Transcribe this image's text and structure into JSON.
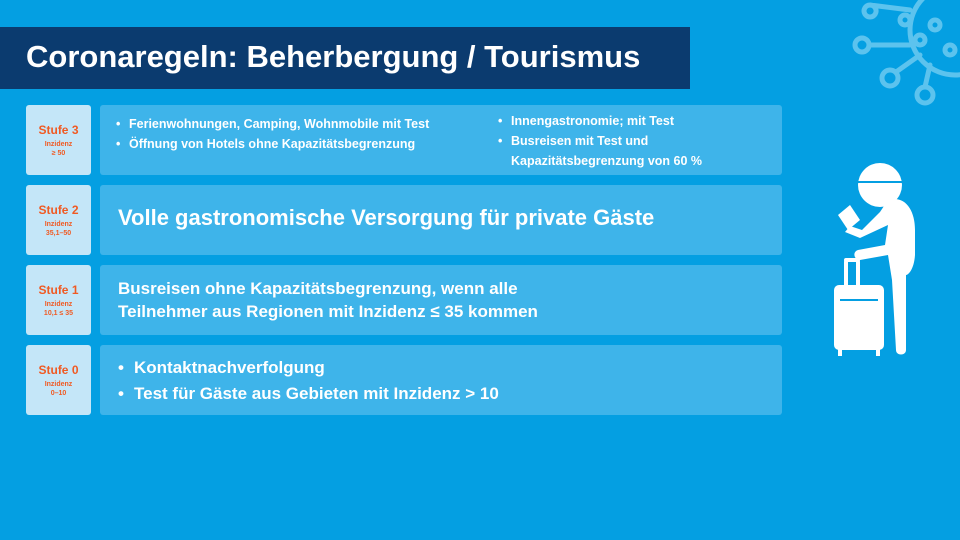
{
  "title": "Coronaregeln: Beherbergung / Tourismus",
  "colors": {
    "background": "#049fe2",
    "title_bg": "#0b3b6f",
    "panel": "#3eb4ea",
    "label_bg": "#c4e6f8",
    "label_text": "#f05a23"
  },
  "rows": [
    {
      "stufe": "Stufe 3",
      "inzidenz_label": "Inzidenz",
      "inzidenz": "≥ 50",
      "col1": [
        "Ferienwohnungen, Camping, Wohnmobile mit Test",
        "Öffnung von Hotels ohne Kapazitätsbegrenzung"
      ],
      "col2": [
        "Innengastronomie; mit Test",
        "Busreisen mit Test und Kapazitätsbegrenzung von 60 %"
      ]
    },
    {
      "stufe": "Stufe 2",
      "inzidenz_label": "Inzidenz",
      "inzidenz": "35,1–50",
      "text": "Volle gastronomische Versorgung für private Gäste"
    },
    {
      "stufe": "Stufe 1",
      "inzidenz_label": "Inzidenz",
      "inzidenz": "10,1 ≤ 35",
      "text": "Busreisen ohne Kapazitätsbegrenzung, wenn alle Teilnehmer aus Regionen mit Inzidenz ≤ 35 kommen"
    },
    {
      "stufe": "Stufe 0",
      "inzidenz_label": "Inzidenz",
      "inzidenz": "0–10",
      "items": [
        "Kontaktnachverfolgung",
        "Test für Gäste aus Gebieten mit Inzidenz > 10"
      ]
    }
  ],
  "icons": [
    "virus-icon",
    "traveler-with-suitcase-icon"
  ]
}
